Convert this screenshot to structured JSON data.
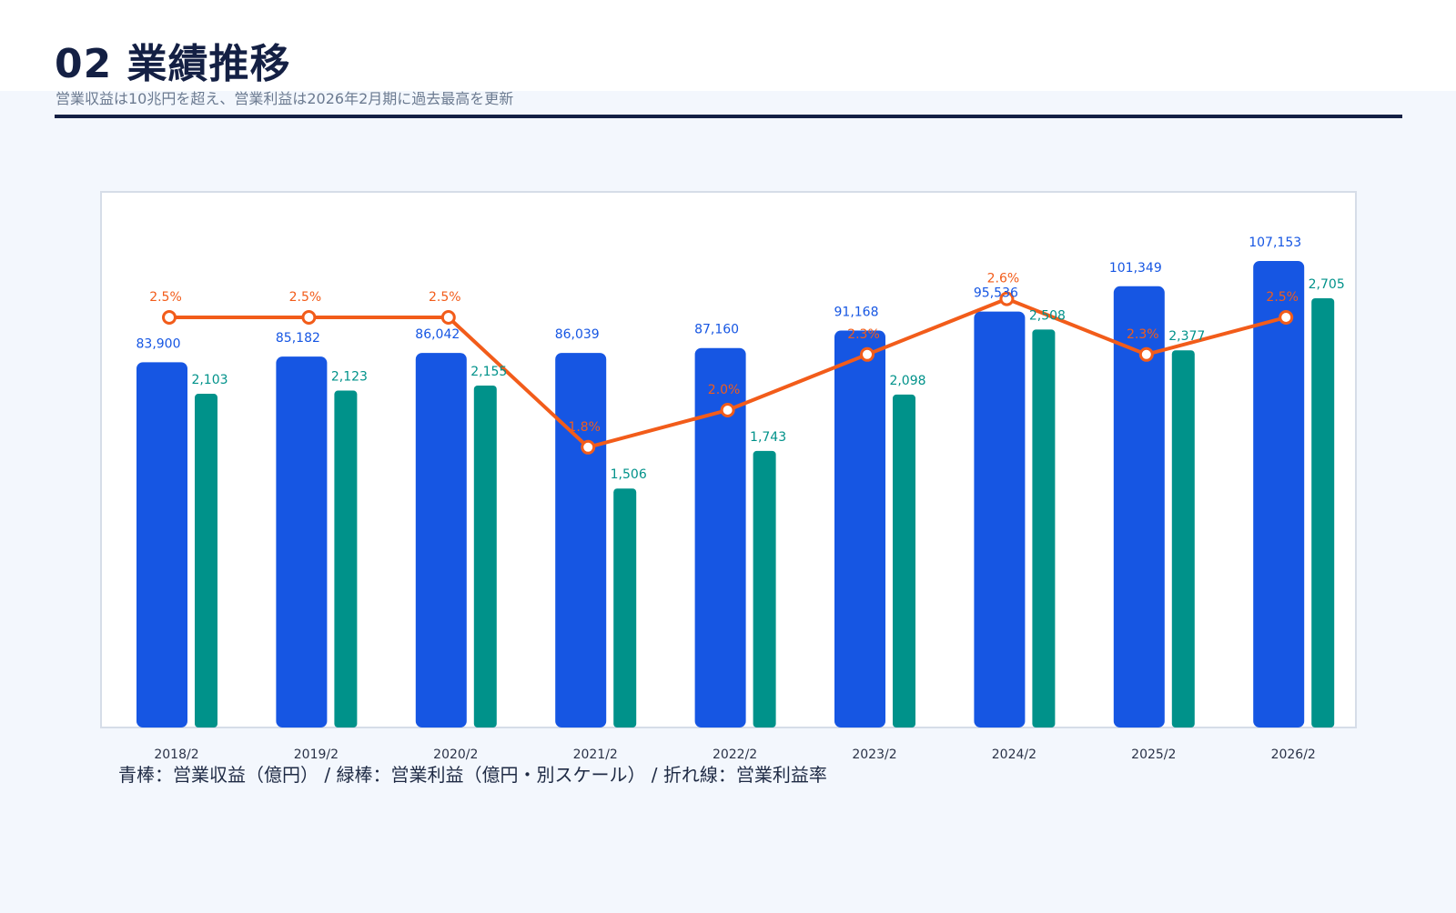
{
  "header": {
    "title": "02 業績推移",
    "subtitle": "営業収益は10兆円を超え、営業利益は2026年2月期に過去最高を更新"
  },
  "legend_text": "青棒：営業収益（億円） / 緑棒：営業利益（億円・別スケール） / 折れ線：営業利益率",
  "colors": {
    "revenue": "#1656e3",
    "profit": "#00928a",
    "margin": "#f25c1a",
    "title": "#142044"
  },
  "chart_data": {
    "type": "bar",
    "categories": [
      "2018/2",
      "2019/2",
      "2020/2",
      "2021/2",
      "2022/2",
      "2023/2",
      "2024/2",
      "2025/2",
      "2026/2"
    ],
    "series": [
      {
        "name": "営業収益（億円）",
        "values": [
          83900,
          85182,
          86042,
          86039,
          87160,
          91168,
          95536,
          101349,
          107153
        ],
        "labels": [
          "83,900",
          "85,182",
          "86,042",
          "86,039",
          "87,160",
          "91,168",
          "95,536",
          "101,349",
          "107,153"
        ]
      },
      {
        "name": "営業利益（億円・別スケール）",
        "values": [
          2103,
          2123,
          2155,
          1506,
          1743,
          2098,
          2508,
          2377,
          2705
        ],
        "labels": [
          "2,103",
          "2,123",
          "2,155",
          "1,506",
          "1,743",
          "2,098",
          "2,508",
          "2,377",
          "2,705"
        ]
      },
      {
        "name": "営業利益率",
        "type": "line",
        "values": [
          2.5,
          2.5,
          2.5,
          1.8,
          2.0,
          2.3,
          2.6,
          2.3,
          2.5
        ],
        "labels": [
          "2.5%",
          "2.5%",
          "2.5%",
          "1.8%",
          "2.0%",
          "2.3%",
          "2.6%",
          "2.3%",
          "2.5%"
        ]
      }
    ],
    "grid": false
  }
}
